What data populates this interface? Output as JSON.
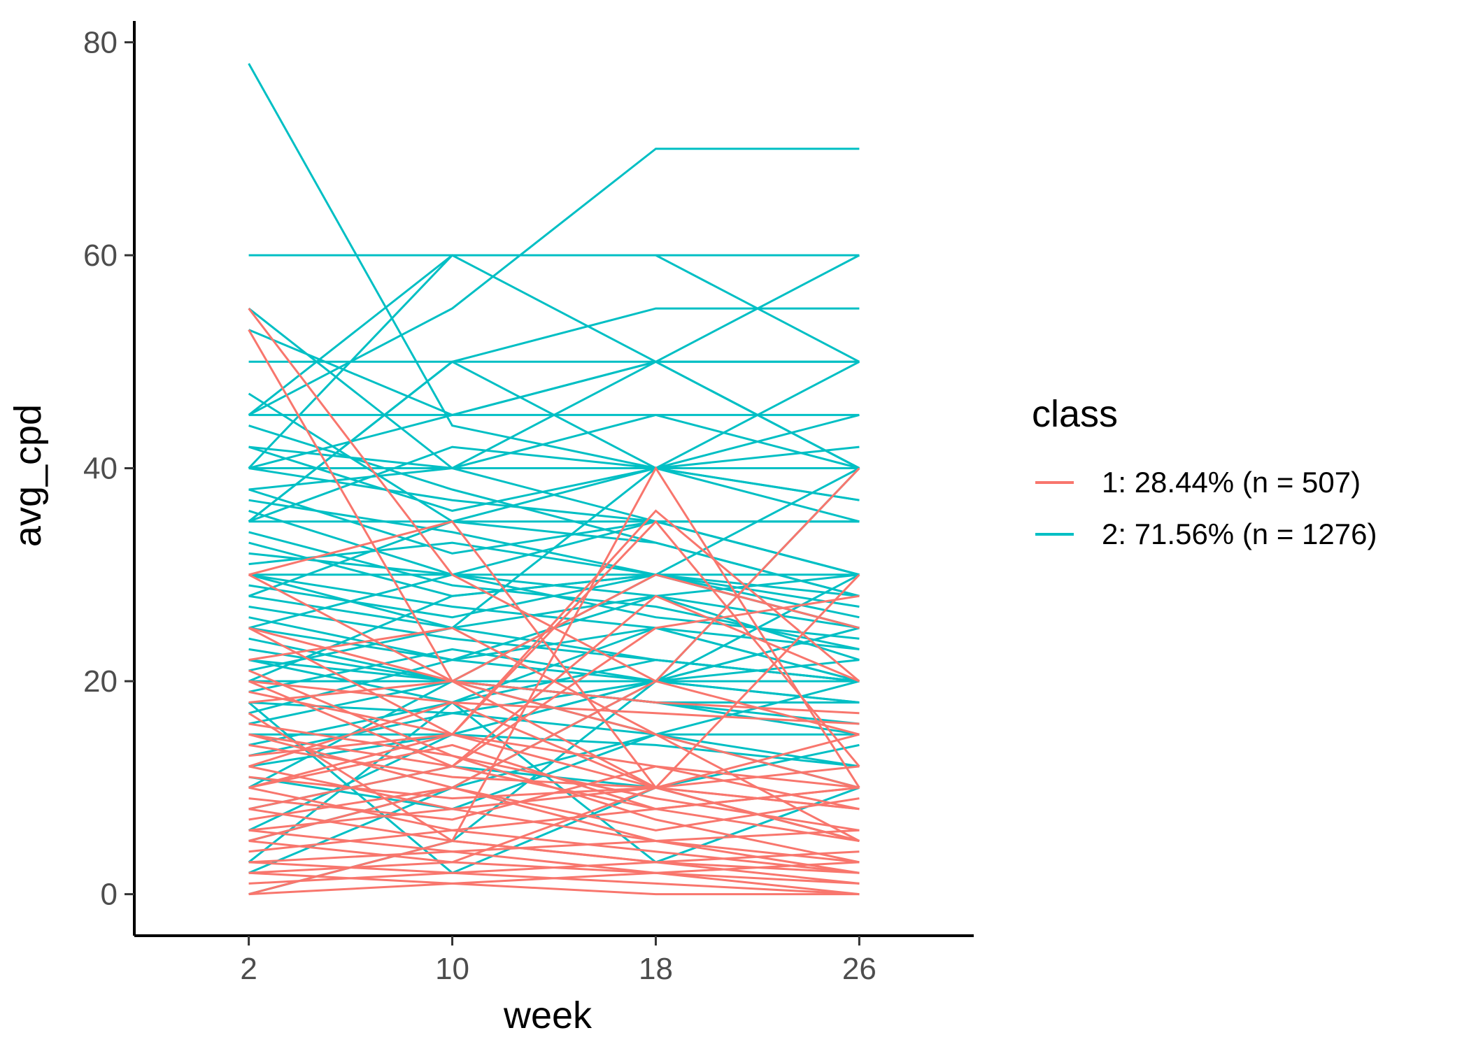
{
  "chart_data": {
    "type": "line",
    "xlabel": "week",
    "ylabel": "avg_cpd",
    "x": [
      2,
      10,
      18,
      26
    ],
    "x_ticks": [
      "2",
      "10",
      "18",
      "26"
    ],
    "y_ticks": [
      "0",
      "20",
      "40",
      "60",
      "80"
    ],
    "xlim": [
      -2.5,
      30.5
    ],
    "ylim": [
      -3.9,
      82
    ],
    "grid": false,
    "legend": {
      "title": "class",
      "position": "right",
      "entries": [
        {
          "label": "1: 28.44% (n = 507)",
          "color": "#F8766D"
        },
        {
          "label": "2: 71.56% (n = 1276)",
          "color": "#00BFC4"
        }
      ]
    },
    "series": [
      {
        "name": "1: 28.44% (n = 507)",
        "color": "#F8766D",
        "n": 507
      },
      {
        "name": "2: 71.56% (n = 1276)",
        "color": "#00BFC4",
        "n": 1276
      }
    ],
    "representative_trajectories": {
      "class_2": [
        [
          78,
          44,
          40,
          35
        ],
        [
          60,
          60,
          60,
          60
        ],
        [
          50,
          50,
          50,
          50
        ],
        [
          45,
          45,
          45,
          45
        ],
        [
          40,
          40,
          40,
          40
        ],
        [
          35,
          35,
          35,
          35
        ],
        [
          30,
          30,
          30,
          30
        ],
        [
          45,
          55,
          70,
          70
        ],
        [
          40,
          60,
          60,
          50
        ],
        [
          35,
          50,
          55,
          55
        ],
        [
          55,
          40,
          50,
          40
        ],
        [
          47,
          35,
          40,
          42
        ],
        [
          53,
          45,
          50,
          40
        ],
        [
          42,
          36,
          40,
          37
        ],
        [
          38,
          32,
          35,
          30
        ],
        [
          33,
          28,
          30,
          25
        ],
        [
          28,
          25,
          28,
          22
        ],
        [
          25,
          22,
          20,
          20
        ],
        [
          20,
          20,
          18,
          18
        ],
        [
          40,
          37,
          35,
          30
        ],
        [
          32,
          30,
          28,
          25
        ],
        [
          27,
          24,
          22,
          20
        ],
        [
          22,
          20,
          20,
          18
        ],
        [
          18,
          17,
          15,
          15
        ],
        [
          15,
          15,
          14,
          12
        ],
        [
          30,
          25,
          40,
          50
        ],
        [
          26,
          22,
          25,
          20
        ],
        [
          23,
          20,
          18,
          15
        ],
        [
          12,
          15,
          20,
          25
        ],
        [
          10,
          20,
          30,
          40
        ],
        [
          2,
          10,
          20,
          30
        ],
        [
          0,
          5,
          20,
          40
        ],
        [
          3,
          18,
          25,
          20
        ],
        [
          38,
          40,
          45,
          40
        ],
        [
          35,
          42,
          40,
          37
        ],
        [
          44,
          38,
          33,
          28
        ],
        [
          20,
          28,
          30,
          25
        ],
        [
          17,
          22,
          28,
          30
        ],
        [
          28,
          35,
          33,
          28
        ],
        [
          30,
          27,
          25,
          23
        ],
        [
          24,
          20,
          18,
          16
        ],
        [
          21,
          25,
          22,
          20
        ],
        [
          36,
          30,
          26,
          24
        ],
        [
          42,
          40,
          35,
          30
        ],
        [
          14,
          18,
          22,
          20
        ],
        [
          19,
          23,
          20,
          22
        ],
        [
          34,
          29,
          27,
          23
        ],
        [
          31,
          33,
          30,
          27
        ],
        [
          45,
          60,
          50,
          60
        ],
        [
          40,
          45,
          50,
          50
        ],
        [
          35,
          50,
          40,
          45
        ],
        [
          25,
          30,
          35,
          35
        ],
        [
          16,
          20,
          15,
          12
        ],
        [
          13,
          17,
          20,
          25
        ],
        [
          29,
          26,
          30,
          28
        ],
        [
          37,
          34,
          30,
          26
        ],
        [
          11,
          8,
          15,
          10
        ],
        [
          8,
          12,
          10,
          14
        ],
        [
          6,
          15,
          20,
          18
        ],
        [
          22,
          18,
          3,
          10
        ],
        [
          18,
          2,
          10,
          5
        ],
        [
          5,
          10,
          15,
          20
        ]
      ],
      "class_1": [
        [
          55,
          30,
          20,
          15
        ],
        [
          53,
          20,
          15,
          5
        ],
        [
          30,
          20,
          10,
          5
        ],
        [
          25,
          15,
          10,
          5
        ],
        [
          20,
          12,
          8,
          5
        ],
        [
          15,
          10,
          5,
          3
        ],
        [
          12,
          8,
          5,
          2
        ],
        [
          10,
          6,
          4,
          2
        ],
        [
          8,
          5,
          3,
          1
        ],
        [
          6,
          4,
          2,
          1
        ],
        [
          5,
          3,
          2,
          0
        ],
        [
          3,
          2,
          1,
          0
        ],
        [
          2,
          1,
          0,
          0
        ],
        [
          0,
          5,
          40,
          10
        ],
        [
          10,
          15,
          36,
          20
        ],
        [
          5,
          10,
          20,
          40
        ],
        [
          30,
          35,
          10,
          5
        ],
        [
          18,
          20,
          30,
          25
        ],
        [
          15,
          12,
          28,
          20
        ],
        [
          12,
          18,
          10,
          30
        ],
        [
          22,
          25,
          15,
          10
        ],
        [
          9,
          7,
          12,
          8
        ],
        [
          7,
          10,
          6,
          9
        ],
        [
          4,
          6,
          8,
          10
        ],
        [
          11,
          9,
          10,
          12
        ],
        [
          14,
          11,
          10,
          8
        ],
        [
          16,
          13,
          9,
          6
        ],
        [
          1,
          2,
          3,
          4
        ],
        [
          0,
          1,
          2,
          3
        ],
        [
          3,
          4,
          5,
          6
        ],
        [
          20,
          18,
          17,
          16
        ],
        [
          25,
          20,
          18,
          17
        ],
        [
          13,
          15,
          35,
          12
        ],
        [
          8,
          12,
          25,
          28
        ],
        [
          6,
          8,
          10,
          15
        ],
        [
          10,
          14,
          8,
          10
        ],
        [
          2,
          3,
          10,
          8
        ],
        [
          17,
          5,
          3,
          2
        ],
        [
          21,
          13,
          7,
          3
        ],
        [
          19,
          15,
          12,
          10
        ]
      ]
    }
  }
}
